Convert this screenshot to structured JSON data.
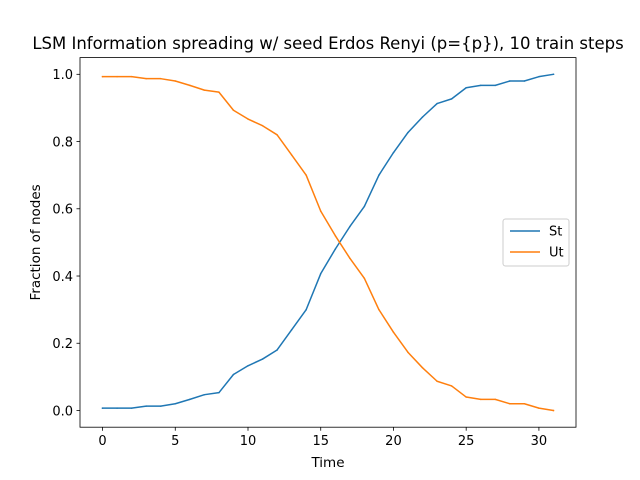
{
  "chart_data": {
    "type": "line",
    "title": "LSM Information spreading w/ seed Erdos Renyi (p={p}), 10 train steps",
    "xlabel": "Time",
    "ylabel": "Fraction of nodes",
    "xlim": [
      -1.55,
      32.55
    ],
    "ylim": [
      -0.0497,
      1.0497
    ],
    "xticks": [
      0,
      5,
      10,
      15,
      20,
      25,
      30
    ],
    "yticks": [
      0.0,
      0.2,
      0.4,
      0.6,
      0.8,
      1.0
    ],
    "xtick_labels": [
      "0",
      "5",
      "10",
      "15",
      "20",
      "25",
      "30"
    ],
    "ytick_labels": [
      "0.0",
      "0.2",
      "0.4",
      "0.6",
      "0.8",
      "1.0"
    ],
    "grid": false,
    "legend_position": "center-right",
    "x": [
      0,
      1,
      2,
      3,
      4,
      5,
      6,
      7,
      8,
      9,
      10,
      11,
      12,
      13,
      14,
      15,
      16,
      17,
      18,
      19,
      20,
      21,
      22,
      23,
      24,
      25,
      26,
      27,
      28,
      29,
      30,
      31
    ],
    "series": [
      {
        "name": "St",
        "color": "#1f77b4",
        "values": [
          0.007,
          0.007,
          0.007,
          0.013,
          0.013,
          0.02,
          0.033,
          0.047,
          0.053,
          0.107,
          0.133,
          0.153,
          0.18,
          0.24,
          0.3,
          0.407,
          0.48,
          0.547,
          0.607,
          0.7,
          0.767,
          0.827,
          0.873,
          0.913,
          0.927,
          0.96,
          0.967,
          0.967,
          0.98,
          0.98,
          0.993,
          1.0
        ]
      },
      {
        "name": "Ut",
        "color": "#ff7f0e",
        "values": [
          0.993,
          0.993,
          0.993,
          0.987,
          0.987,
          0.98,
          0.967,
          0.953,
          0.947,
          0.893,
          0.867,
          0.847,
          0.82,
          0.76,
          0.7,
          0.593,
          0.52,
          0.453,
          0.393,
          0.3,
          0.233,
          0.173,
          0.127,
          0.087,
          0.073,
          0.04,
          0.033,
          0.033,
          0.02,
          0.02,
          0.007,
          0.0
        ]
      }
    ]
  }
}
